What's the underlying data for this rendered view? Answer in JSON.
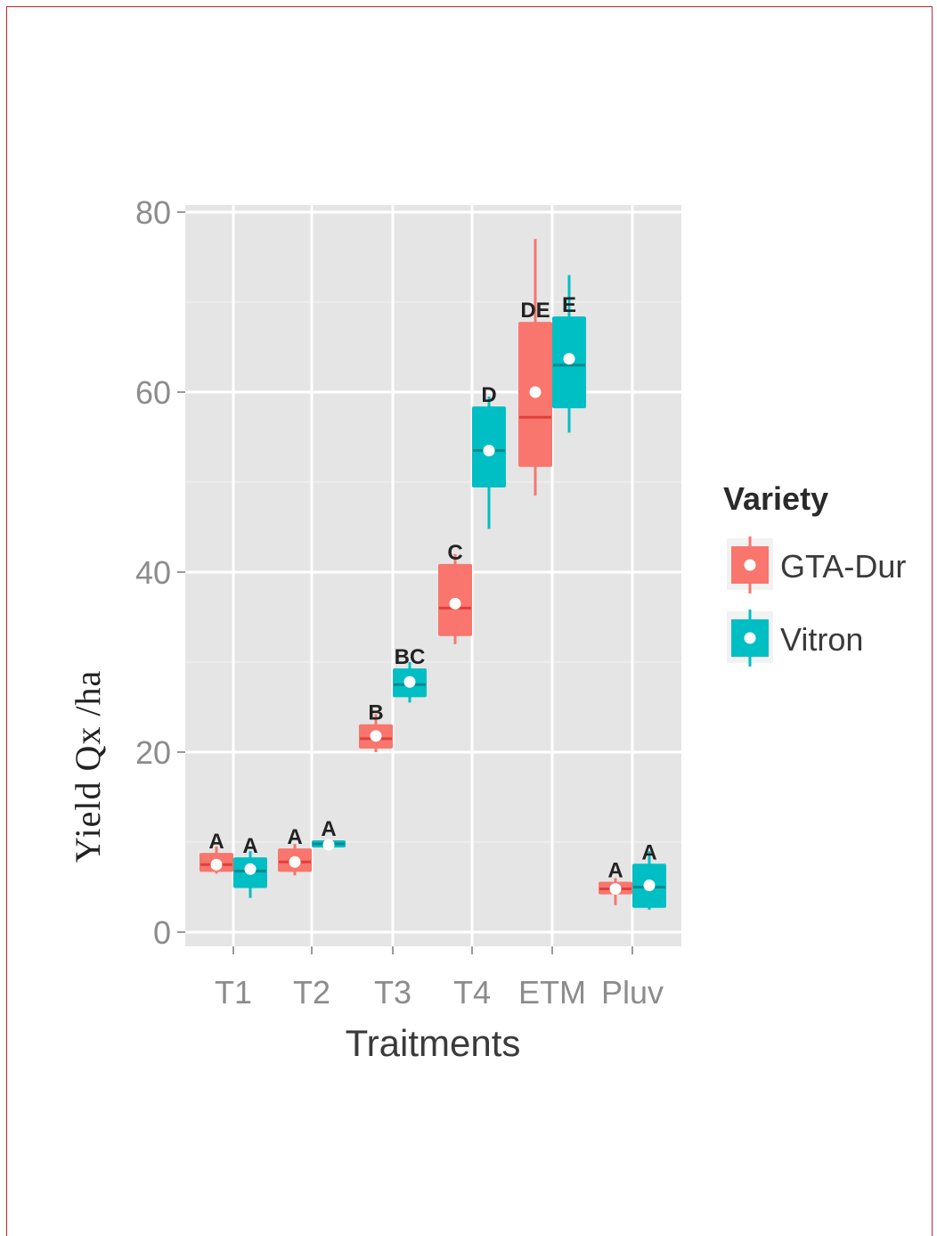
{
  "chart_data": {
    "type": "box",
    "title": "",
    "xlabel": "Traitments",
    "ylabel": "Yield  Qx /ha",
    "ylim": [
      0,
      80
    ],
    "yticks": [
      0,
      20,
      40,
      60,
      80
    ],
    "categories": [
      "T1",
      "T2",
      "T3",
      "T4",
      "ETM",
      "Pluv"
    ],
    "grid": true,
    "legend": {
      "title": "Variety",
      "position": "right"
    },
    "series": [
      {
        "name": "GTA-Dur",
        "color": "#f8766d",
        "boxes": [
          {
            "category": "T1",
            "min": 6.5,
            "q1": 6.8,
            "median": 7.5,
            "q3": 8.7,
            "max": 9.5,
            "mean": 7.5,
            "letter": "A"
          },
          {
            "category": "T2",
            "min": 6.3,
            "q1": 6.8,
            "median": 7.8,
            "q3": 9.2,
            "max": 9.8,
            "mean": 7.8,
            "letter": "A"
          },
          {
            "category": "T3",
            "min": 20.0,
            "q1": 20.5,
            "median": 21.5,
            "q3": 23.0,
            "max": 24.2,
            "mean": 21.8,
            "letter": "B"
          },
          {
            "category": "T4",
            "min": 32.0,
            "q1": 33.0,
            "median": 36.0,
            "q3": 40.8,
            "max": 42.0,
            "mean": 36.5,
            "letter": "C"
          },
          {
            "category": "ETM",
            "min": 48.5,
            "q1": 51.8,
            "median": 57.2,
            "q3": 67.7,
            "max": 77.0,
            "mean": 60.0,
            "letter": "DE"
          },
          {
            "category": "Pluv",
            "min": 3.0,
            "q1": 4.3,
            "median": 4.8,
            "q3": 5.5,
            "max": 6.0,
            "mean": 4.8,
            "letter": "A"
          }
        ]
      },
      {
        "name": "Vitron",
        "color": "#00bfc4",
        "boxes": [
          {
            "category": "T1",
            "min": 3.8,
            "q1": 5.0,
            "median": 6.8,
            "q3": 8.2,
            "max": 9.0,
            "mean": 7.0,
            "letter": "A"
          },
          {
            "category": "T2",
            "min": 9.3,
            "q1": 9.5,
            "median": 9.8,
            "q3": 10.1,
            "max": 10.3,
            "mean": 9.7,
            "letter": "A"
          },
          {
            "category": "T3",
            "min": 25.5,
            "q1": 26.2,
            "median": 27.5,
            "q3": 29.2,
            "max": 30.0,
            "mean": 27.8,
            "letter": "BC"
          },
          {
            "category": "T4",
            "min": 44.8,
            "q1": 49.5,
            "median": 53.5,
            "q3": 58.3,
            "max": 59.5,
            "mean": 53.5,
            "letter": "D"
          },
          {
            "category": "ETM",
            "min": 55.5,
            "q1": 58.3,
            "median": 63.0,
            "q3": 68.3,
            "max": 73.0,
            "mean": 63.7,
            "letter": "E"
          },
          {
            "category": "Pluv",
            "min": 2.5,
            "q1": 2.8,
            "median": 5.0,
            "q3": 7.5,
            "max": 9.0,
            "mean": 5.2,
            "letter": "A"
          }
        ]
      }
    ]
  }
}
